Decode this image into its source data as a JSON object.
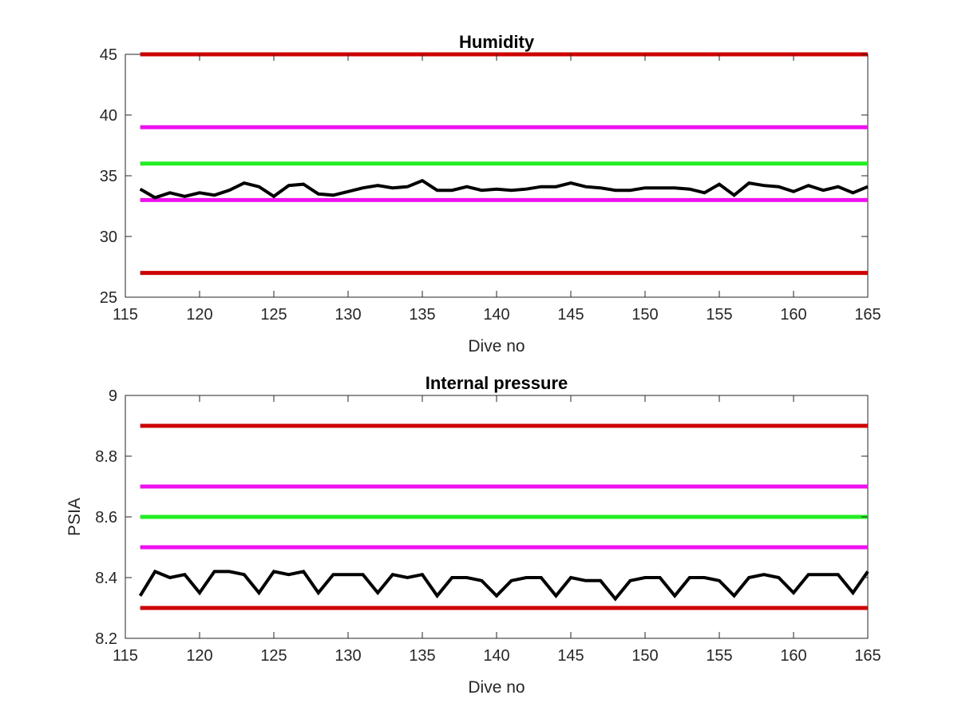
{
  "chart_data": [
    {
      "type": "line",
      "title": "Humidity",
      "xlabel": "Dive no",
      "ylabel": "",
      "xlim": [
        115,
        165
      ],
      "ylim": [
        25,
        45
      ],
      "xticks": [
        "115",
        "120",
        "125",
        "130",
        "135",
        "140",
        "145",
        "150",
        "155",
        "160",
        "165"
      ],
      "yticks": [
        "25",
        "30",
        "35",
        "40",
        "45"
      ],
      "grid": false,
      "thresholds": [
        {
          "y": 45,
          "x": [
            116,
            165
          ],
          "color": "#cc0000"
        },
        {
          "y": 39,
          "x": [
            116,
            165
          ],
          "color": "#ee11ee"
        },
        {
          "y": 36,
          "x": [
            116,
            165
          ],
          "color": "#22ee22"
        },
        {
          "y": 33,
          "x": [
            116,
            165
          ],
          "color": "#ee11ee"
        },
        {
          "y": 27,
          "x": [
            116,
            165
          ],
          "color": "#cc0000"
        }
      ],
      "series": [
        {
          "color": "#000000",
          "x": [
            116,
            117,
            118,
            119,
            120,
            121,
            122,
            123,
            124,
            125,
            126,
            127,
            128,
            129,
            130,
            131,
            132,
            133,
            134,
            135,
            136,
            137,
            138,
            139,
            140,
            141,
            142,
            143,
            144,
            145,
            146,
            147,
            148,
            149,
            150,
            151,
            152,
            153,
            154,
            155,
            156,
            157,
            158,
            159,
            160,
            161,
            162,
            163,
            164,
            165
          ],
          "values": [
            33.9,
            33.2,
            33.6,
            33.3,
            33.6,
            33.4,
            33.8,
            34.4,
            34.1,
            33.3,
            34.2,
            34.3,
            33.5,
            33.4,
            33.7,
            34.0,
            34.2,
            34.0,
            34.1,
            34.6,
            33.8,
            33.8,
            34.1,
            33.8,
            33.9,
            33.8,
            33.9,
            34.1,
            34.1,
            34.4,
            34.1,
            34.0,
            33.8,
            33.8,
            34.0,
            34.0,
            34.0,
            33.9,
            33.6,
            34.3,
            33.4,
            34.4,
            34.2,
            34.1,
            33.7,
            34.2,
            33.8,
            34.1,
            33.6,
            34.1
          ]
        }
      ]
    },
    {
      "type": "line",
      "title": "Internal pressure",
      "xlabel": "Dive no",
      "ylabel": "PSIA",
      "xlim": [
        115,
        165
      ],
      "ylim": [
        8.2,
        9.0
      ],
      "xticks": [
        "115",
        "120",
        "125",
        "130",
        "135",
        "140",
        "145",
        "150",
        "155",
        "160",
        "165"
      ],
      "yticks": [
        "8.2",
        "8.4",
        "8.6",
        "8.8",
        "9"
      ],
      "grid": false,
      "thresholds": [
        {
          "y": 8.9,
          "x": [
            116,
            165
          ],
          "color": "#cc0000"
        },
        {
          "y": 8.7,
          "x": [
            116,
            165
          ],
          "color": "#ee11ee"
        },
        {
          "y": 8.6,
          "x": [
            116,
            165
          ],
          "color": "#22ee22"
        },
        {
          "y": 8.5,
          "x": [
            116,
            165
          ],
          "color": "#ee11ee"
        },
        {
          "y": 8.3,
          "x": [
            116,
            165
          ],
          "color": "#cc0000"
        }
      ],
      "series": [
        {
          "color": "#000000",
          "x": [
            116,
            117,
            118,
            119,
            120,
            121,
            122,
            123,
            124,
            125,
            126,
            127,
            128,
            129,
            130,
            131,
            132,
            133,
            134,
            135,
            136,
            137,
            138,
            139,
            140,
            141,
            142,
            143,
            144,
            145,
            146,
            147,
            148,
            149,
            150,
            151,
            152,
            153,
            154,
            155,
            156,
            157,
            158,
            159,
            160,
            161,
            162,
            163,
            164,
            165
          ],
          "values": [
            8.34,
            8.42,
            8.4,
            8.41,
            8.35,
            8.42,
            8.42,
            8.41,
            8.35,
            8.42,
            8.41,
            8.42,
            8.35,
            8.41,
            8.41,
            8.41,
            8.35,
            8.41,
            8.4,
            8.41,
            8.34,
            8.4,
            8.4,
            8.39,
            8.34,
            8.39,
            8.4,
            8.4,
            8.34,
            8.4,
            8.39,
            8.39,
            8.33,
            8.39,
            8.4,
            8.4,
            8.34,
            8.4,
            8.4,
            8.39,
            8.34,
            8.4,
            8.41,
            8.4,
            8.35,
            8.41,
            8.41,
            8.41,
            8.35,
            8.42
          ]
        }
      ]
    }
  ]
}
